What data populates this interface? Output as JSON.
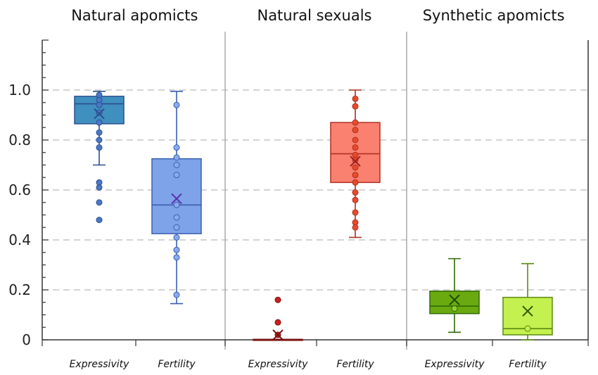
{
  "colors": {
    "frame": "#333333",
    "grid": "#bbbbbb",
    "divider": "#aaaaaa"
  },
  "chart_data": {
    "type": "box",
    "ylim": [
      0,
      1.2
    ],
    "yticks": [
      "0",
      "0.2",
      "0.4",
      "0.6",
      "0.8",
      "1.0"
    ],
    "ytick_values": [
      0,
      0.2,
      0.4,
      0.6,
      0.8,
      1.0
    ],
    "grid": "horizontal dashed",
    "panels": [
      {
        "title": "Natural apomicts",
        "boxes": [
          {
            "label": "Expressivity",
            "fill": "#3f8fbf",
            "stroke": "#2c4f8f",
            "point": "#4a78c8",
            "mean_color": "#2c4f8f",
            "whisker_low": 0.7,
            "q1": 0.865,
            "median": 0.945,
            "q3": 0.975,
            "whisker_high": 0.995,
            "mean": 0.905,
            "points": [
              0.98,
              0.96,
              0.94,
              0.91,
              0.87,
              0.83,
              0.8,
              0.77,
              0.63,
              0.61,
              0.55,
              0.48
            ]
          },
          {
            "label": "Fertility",
            "fill": "#7fa3e8",
            "stroke": "#3a5fb0",
            "point": "#8aaaf0",
            "mean_color": "#5a2fb0",
            "whisker_low": 0.145,
            "q1": 0.425,
            "median": 0.54,
            "q3": 0.725,
            "whisker_high": 0.995,
            "mean": 0.565,
            "points": [
              0.94,
              0.77,
              0.73,
              0.7,
              0.66,
              0.54,
              0.49,
              0.45,
              0.41,
              0.36,
              0.33,
              0.18
            ]
          }
        ]
      },
      {
        "title": "Natural sexuals",
        "boxes": [
          {
            "label": "Expressivity",
            "fill": "#c0392b",
            "stroke": "#7a1010",
            "point": "#cc2020",
            "mean_color": "#7a1010",
            "whisker_low": 0,
            "q1": 0,
            "median": 0,
            "q3": 0.002,
            "whisker_high": 0.002,
            "mean": 0.02,
            "points": [
              0.16,
              0.07,
              0.02
            ]
          },
          {
            "label": "Fertility",
            "fill": "#fa8070",
            "stroke": "#b03020",
            "point": "#e84a2a",
            "mean_color": "#a02020",
            "whisker_low": 0.41,
            "q1": 0.63,
            "median": 0.745,
            "q3": 0.87,
            "whisker_high": 1.0,
            "mean": 0.715,
            "points": [
              0.965,
              0.935,
              0.87,
              0.84,
              0.8,
              0.77,
              0.74,
              0.72,
              0.69,
              0.66,
              0.63,
              0.59,
              0.56,
              0.51,
              0.47,
              0.45
            ]
          }
        ]
      },
      {
        "title": "Synthetic apomicts",
        "boxes": [
          {
            "label": "Expressivity",
            "fill": "#6aaa10",
            "stroke": "#2f6a05",
            "point": "#8ccf30",
            "mean_color": "#1f4a05",
            "whisker_low": 0.03,
            "q1": 0.105,
            "median": 0.135,
            "q3": 0.195,
            "whisker_high": 0.325,
            "mean": 0.16,
            "points": [
              0.125
            ]
          },
          {
            "label": "Fertility",
            "fill": "#c4f050",
            "stroke": "#5a8a10",
            "point": "#c4f050",
            "mean_color": "#2f5a05",
            "whisker_low": 0,
            "q1": 0.02,
            "median": 0.045,
            "q3": 0.17,
            "whisker_high": 0.305,
            "mean": 0.115,
            "points": [
              0.045
            ]
          }
        ]
      }
    ]
  }
}
